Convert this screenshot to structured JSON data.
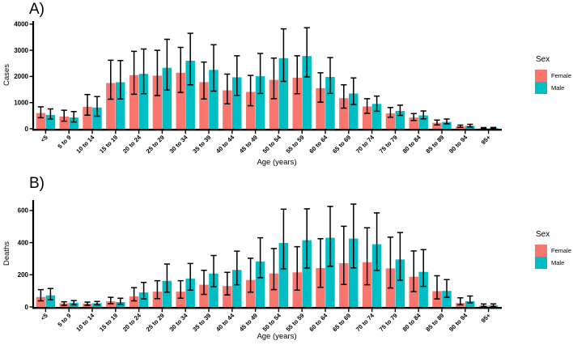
{
  "chart_data": [
    {
      "type": "bar",
      "panel_label": "A)",
      "title": "",
      "xlabel": "Age (years)",
      "ylabel": "Cases",
      "ylim": [
        0,
        4000
      ],
      "yticks": [
        0,
        1000,
        2000,
        3000,
        4000
      ],
      "grid": false,
      "error_bars": true,
      "legend_title": "Sex",
      "legend_position": "right",
      "categories": [
        "<5",
        "5 to 9",
        "10 to 14",
        "15 to 19",
        "20 to 24",
        "25 to 29",
        "30 to 34",
        "35 to 39",
        "40 to 44",
        "45 to 49",
        "50 to 54",
        "55 to 59",
        "60 to 64",
        "65 to 69",
        "70 to 74",
        "75 to 79",
        "80 to 84",
        "85 to 89",
        "90 to 94",
        "95+"
      ],
      "series": [
        {
          "name": "Female",
          "color": "#F8766D",
          "values": [
            600,
            470,
            840,
            1750,
            2050,
            2030,
            2140,
            1780,
            1470,
            1410,
            1870,
            1950,
            1550,
            1170,
            850,
            590,
            430,
            230,
            90,
            20
          ],
          "ci_low": [
            420,
            290,
            520,
            1130,
            1320,
            1270,
            1390,
            1140,
            950,
            880,
            1150,
            1340,
            1020,
            790,
            590,
            440,
            320,
            150,
            55,
            8
          ],
          "ci_high": [
            840,
            710,
            1310,
            2620,
            2960,
            3000,
            3110,
            2550,
            2090,
            2040,
            2700,
            2790,
            2140,
            1680,
            1150,
            810,
            580,
            330,
            140,
            45
          ]
        },
        {
          "name": "Male",
          "color": "#00BFC4",
          "values": [
            530,
            430,
            810,
            1780,
            2100,
            2330,
            2600,
            2250,
            1970,
            2010,
            2700,
            2780,
            1980,
            1350,
            950,
            680,
            510,
            260,
            110,
            25
          ],
          "ci_low": [
            370,
            260,
            480,
            1140,
            1340,
            1480,
            1680,
            1440,
            1280,
            1350,
            1810,
            1980,
            1350,
            930,
            670,
            510,
            380,
            190,
            70,
            10
          ],
          "ci_high": [
            760,
            660,
            1230,
            2610,
            3050,
            3420,
            3650,
            3210,
            2790,
            2880,
            3820,
            3860,
            2720,
            1940,
            1250,
            900,
            680,
            370,
            170,
            50
          ]
        }
      ]
    },
    {
      "type": "bar",
      "panel_label": "B)",
      "title": "",
      "xlabel": "Age (years)",
      "ylabel": "Deaths",
      "ylim": [
        0,
        600
      ],
      "yticks": [
        0,
        200,
        400,
        600
      ],
      "grid": false,
      "error_bars": true,
      "legend_title": "Sex",
      "legend_position": "right",
      "categories": [
        "<5",
        "5 to 9",
        "10 to 14",
        "15 to 19",
        "20 to 24",
        "25 to 29",
        "30 to 34",
        "35 to 39",
        "40 to 44",
        "45 to 49",
        "50 to 54",
        "55 to 59",
        "60 to 64",
        "65 to 69",
        "70 to 74",
        "75 to 79",
        "80 to 84",
        "85 to 89",
        "90 to 94",
        "95+"
      ],
      "series": [
        {
          "name": "Female",
          "color": "#F8766D",
          "values": [
            62,
            22,
            20,
            35,
            66,
            95,
            95,
            138,
            130,
            168,
            208,
            215,
            242,
            272,
            278,
            240,
            188,
            98,
            24,
            8
          ],
          "ci_low": [
            38,
            10,
            10,
            20,
            38,
            52,
            54,
            78,
            75,
            92,
            108,
            105,
            122,
            140,
            138,
            118,
            94,
            50,
            13,
            3
          ],
          "ci_high": [
            108,
            32,
            30,
            60,
            120,
            163,
            163,
            228,
            215,
            303,
            363,
            375,
            424,
            502,
            492,
            434,
            348,
            194,
            57,
            18
          ]
        },
        {
          "name": "Male",
          "color": "#00BFC4",
          "values": [
            72,
            26,
            23,
            30,
            90,
            162,
            176,
            208,
            230,
            283,
            398,
            415,
            430,
            425,
            390,
            295,
            218,
            100,
            36,
            9
          ],
          "ci_low": [
            45,
            13,
            13,
            17,
            50,
            92,
            105,
            126,
            138,
            182,
            237,
            242,
            253,
            243,
            227,
            166,
            128,
            60,
            25,
            3
          ],
          "ci_high": [
            115,
            40,
            34,
            54,
            152,
            267,
            270,
            320,
            347,
            430,
            608,
            610,
            625,
            640,
            585,
            463,
            356,
            170,
            68,
            19
          ]
        }
      ]
    }
  ]
}
